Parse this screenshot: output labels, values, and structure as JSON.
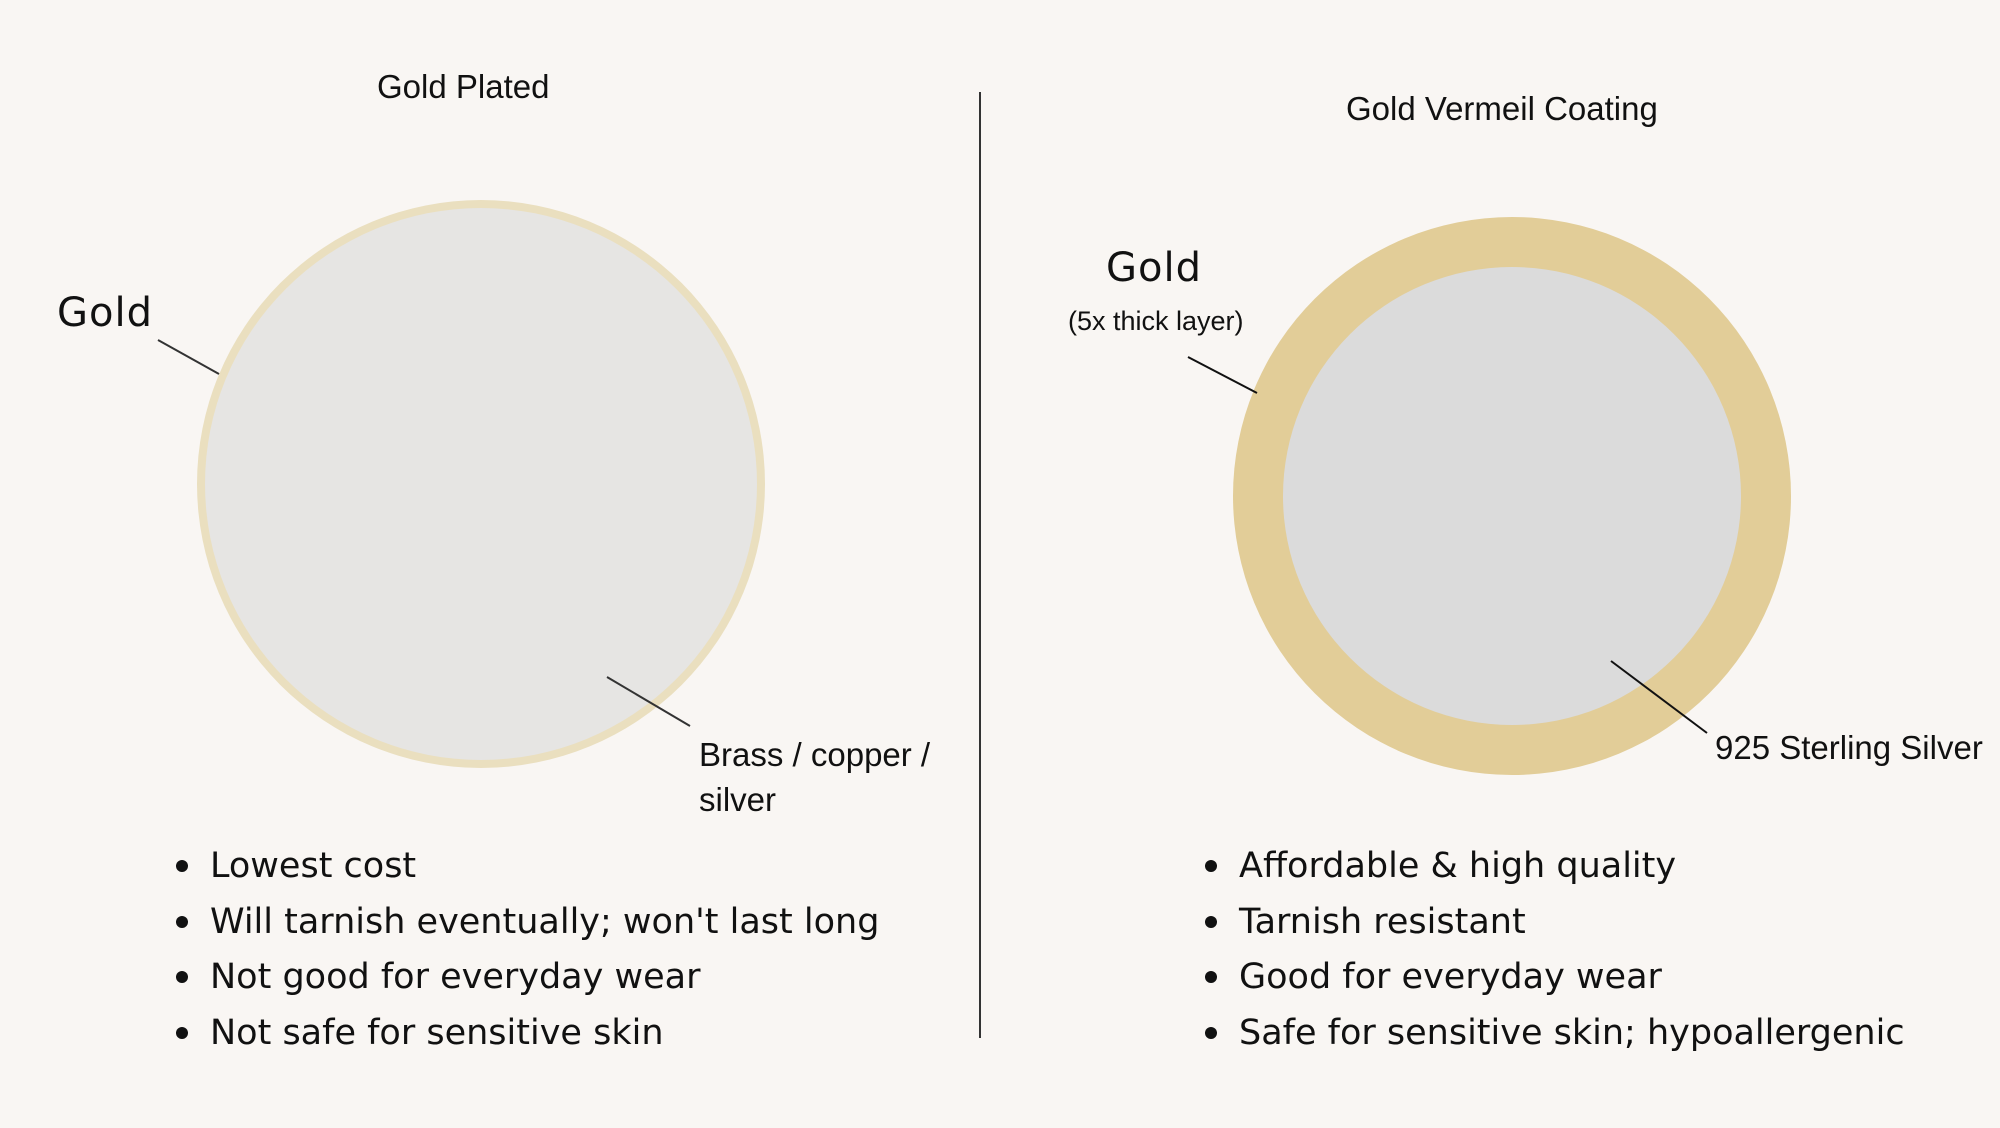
{
  "left_panel": {
    "title": "Gold Plated",
    "outer_label": "Gold",
    "core_label": "Brass / copper / silver",
    "bullets": [
      "Lowest cost",
      "Will tarnish eventually; won't last long",
      "Not good for everyday wear",
      "Not safe for sensitive skin"
    ]
  },
  "right_panel": {
    "title": "Gold Vermeil Coating",
    "outer_label": "Gold",
    "outer_sublabel": "(5x thick layer)",
    "core_label": "925 Sterling Silver",
    "bullets": [
      "Affordable & high quality",
      "Tarnish resistant",
      "Good for everyday wear",
      "Safe for sensitive skin; hypoallergenic"
    ]
  },
  "colors": {
    "background": "#f9f6f3",
    "gold_thin_ring": "#eadfbf",
    "gold_thick_ring": "#e2cd98",
    "left_core": "#e6e5e3",
    "right_core": "#dbdbdb",
    "lines": "#333333"
  }
}
